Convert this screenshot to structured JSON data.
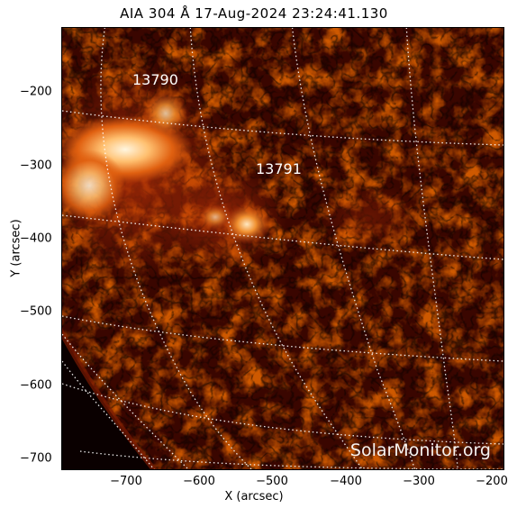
{
  "title": "AIA 304 Å 17-Aug-2024 23:24:41.130",
  "x_axis": {
    "label": "X (arcsec)",
    "ticks": [
      "−700",
      "−600",
      "−500",
      "−400",
      "−300",
      "−200"
    ]
  },
  "y_axis": {
    "label": "Y (arcsec)",
    "ticks": [
      "−200",
      "−300",
      "−400",
      "−500",
      "−600",
      "−700"
    ]
  },
  "active_regions": [
    {
      "number": "13790"
    },
    {
      "number": "13791"
    }
  ],
  "watermark": "SolarMonitor.org",
  "colors": {
    "background": "#ffffff",
    "disk_dark": "#120000",
    "disk_mid": "#7a1400",
    "disk_bright": "#d65a10",
    "flare_core": "#fff4d8",
    "grid": "#ffffff",
    "text": "#000000"
  },
  "grid_style": "dotted heliographic lines"
}
